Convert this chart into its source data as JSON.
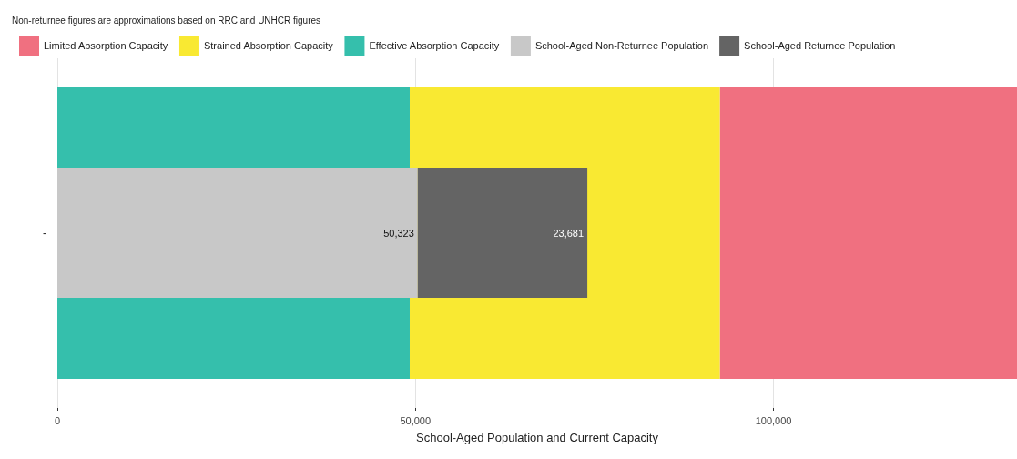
{
  "chart_data": {
    "type": "bar",
    "orientation": "horizontal",
    "title": "Non-returnee figures are approximations based on RRC and UNHCR figures",
    "xlabel": "School-Aged Population and Current Capacity",
    "categories": [
      "-"
    ],
    "series": [
      {
        "name": "Limited Absorption Capacity",
        "color": "#f07080",
        "values": [
          41500
        ],
        "base": [
          92500
        ]
      },
      {
        "name": "Strained Absorption Capacity",
        "color": "#f9e932",
        "values": [
          43300
        ],
        "base": [
          49200
        ]
      },
      {
        "name": "Effective Absorption Capacity",
        "color": "#35bfac",
        "values": [
          49200
        ],
        "base": [
          0
        ]
      },
      {
        "name": "School-Aged Non-Returnee Population",
        "color": "#c8c8c8",
        "values": [
          50323
        ],
        "base": [
          0
        ],
        "value_labels": [
          "50,323"
        ]
      },
      {
        "name": "School-Aged Returnee Population",
        "color": "#646464",
        "values": [
          23681
        ],
        "base": [
          50323
        ],
        "value_labels": [
          "23,681"
        ]
      }
    ],
    "xlim": [
      0,
      134000
    ],
    "xticks": [
      0,
      {
        "value": 50000,
        "label": "50,000"
      },
      {
        "value": 100000,
        "label": "100,000"
      }
    ],
    "grid": "x",
    "legend": "top left"
  }
}
